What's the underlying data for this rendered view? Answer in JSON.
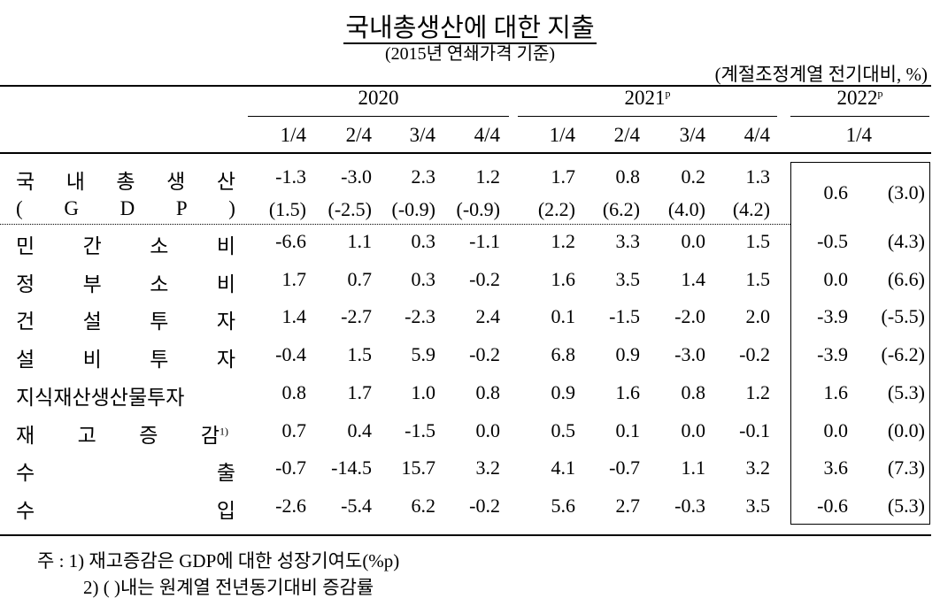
{
  "title": "국내총생산에 대한 지출",
  "subtitle": "(2015년 연쇄가격 기준)",
  "unit": "(계절조정계열 전기대비, %)",
  "header": {
    "years": [
      {
        "label": "2020",
        "sup": ""
      },
      {
        "label": "2021",
        "sup": "p"
      },
      {
        "label": "2022",
        "sup": "p"
      }
    ],
    "quarters": [
      "1/4",
      "2/4",
      "3/4",
      "4/4",
      "1/4",
      "2/4",
      "3/4",
      "4/4",
      "1/4"
    ]
  },
  "gdp": {
    "label_chars": [
      "국",
      "내",
      "총",
      "생",
      "산"
    ],
    "label2_chars": [
      "(",
      "G",
      "D",
      "P",
      ")"
    ],
    "values": [
      "-1.3",
      "-3.0",
      "2.3",
      "1.2",
      "1.7",
      "0.8",
      "0.2",
      "1.3"
    ],
    "yoy": [
      "(1.5)",
      "(-2.5)",
      "(-0.9)",
      "(-0.9)",
      "(2.2)",
      "(6.2)",
      "(4.0)",
      "(4.2)"
    ],
    "latest": "0.6",
    "latest_yoy": "(3.0)"
  },
  "rows": [
    {
      "chars": [
        "민",
        "간",
        "소",
        "비"
      ],
      "sup": "",
      "values": [
        "-6.6",
        "1.1",
        "0.3",
        "-1.1",
        "1.2",
        "3.3",
        "0.0",
        "1.5"
      ],
      "latest": "-0.5",
      "latest_yoy": "(4.3)"
    },
    {
      "chars": [
        "정",
        "부",
        "소",
        "비"
      ],
      "sup": "",
      "values": [
        "1.7",
        "0.7",
        "0.3",
        "-0.2",
        "1.6",
        "3.5",
        "1.4",
        "1.5"
      ],
      "latest": "0.0",
      "latest_yoy": "(6.6)"
    },
    {
      "chars": [
        "건",
        "설",
        "투",
        "자"
      ],
      "sup": "",
      "values": [
        "1.4",
        "-2.7",
        "-2.3",
        "2.4",
        "0.1",
        "-1.5",
        "-2.0",
        "2.0"
      ],
      "latest": "-3.9",
      "latest_yoy": "(-5.5)"
    },
    {
      "chars": [
        "설",
        "비",
        "투",
        "자"
      ],
      "sup": "",
      "values": [
        "-0.4",
        "1.5",
        "5.9",
        "-0.2",
        "6.8",
        "0.9",
        "-3.0",
        "-0.2"
      ],
      "latest": "-3.9",
      "latest_yoy": "(-6.2)"
    },
    {
      "chars": [
        "지식재산생산물투자"
      ],
      "sup": "",
      "values": [
        "0.8",
        "1.7",
        "1.0",
        "0.8",
        "0.9",
        "1.6",
        "0.8",
        "1.2"
      ],
      "latest": "1.6",
      "latest_yoy": "(5.3)"
    },
    {
      "chars": [
        "재",
        "고",
        "증",
        "감"
      ],
      "sup": "1)",
      "values": [
        "0.7",
        "0.4",
        "-1.5",
        "0.0",
        "0.5",
        "0.1",
        "0.0",
        "-0.1"
      ],
      "latest": "0.0",
      "latest_yoy": "(0.0)"
    },
    {
      "chars": [
        "수",
        "출"
      ],
      "sup": "",
      "values": [
        "-0.7",
        "-14.5",
        "15.7",
        "3.2",
        "4.1",
        "-0.7",
        "1.1",
        "3.2"
      ],
      "latest": "3.6",
      "latest_yoy": "(7.3)"
    },
    {
      "chars": [
        "수",
        "입"
      ],
      "sup": "",
      "values": [
        "-2.6",
        "-5.4",
        "6.2",
        "-0.2",
        "5.6",
        "2.7",
        "-0.3",
        "3.5"
      ],
      "latest": "-0.6",
      "latest_yoy": "(5.3)"
    }
  ],
  "notes": [
    "주 : 1) 재고증감은 GDP에 대한 성장기여도(%p)",
    "2) (   )내는 원계열 전년동기대비 증감률"
  ]
}
